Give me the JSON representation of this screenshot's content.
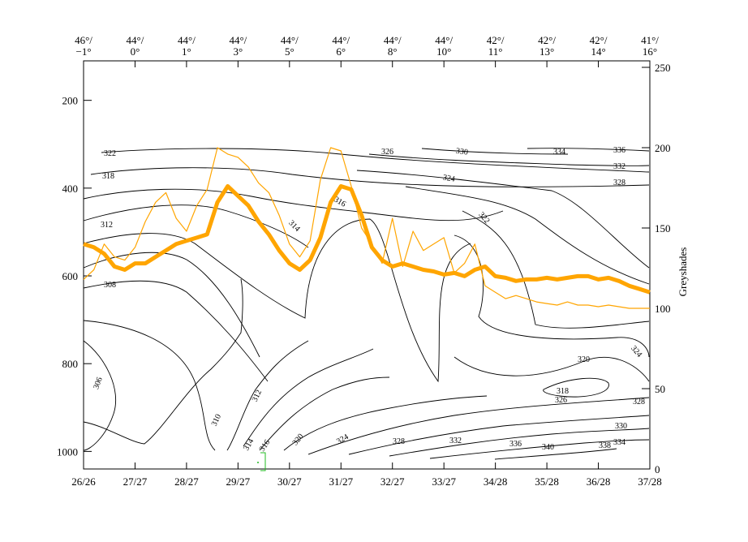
{
  "chart_data": {
    "type": "line",
    "title": "",
    "left_axis": {
      "ticks": [
        "200",
        "400",
        "600",
        "800",
        "1000"
      ],
      "values": [
        200,
        400,
        600,
        800,
        1000
      ],
      "range": [
        110,
        1040
      ]
    },
    "right_axis": {
      "label": "Greyshades",
      "ticks": [
        "0",
        "50",
        "100",
        "150",
        "200",
        "250"
      ],
      "values": [
        0,
        50,
        100,
        150,
        200,
        250
      ],
      "range": [
        0,
        250
      ]
    },
    "bottom_axis": {
      "ticks": [
        "26/26",
        "27/27",
        "28/27",
        "29/27",
        "30/27",
        "31/27",
        "32/27",
        "33/27",
        "34/28",
        "35/28",
        "36/28",
        "37/28"
      ]
    },
    "top_axis": {
      "lat": [
        "46°/",
        "44°/",
        "44°/",
        "44°/",
        "44°/",
        "44°/",
        "44°/",
        "44°/",
        "42°/",
        "42°/",
        "42°/",
        "41°/"
      ],
      "lon": [
        "−1°",
        "0°",
        "1°",
        "3°",
        "5°",
        "6°",
        "8°",
        "10°",
        "11°",
        "13°",
        "14°",
        "16°"
      ]
    },
    "contour_labels": [
      "322",
      "318",
      "312",
      "308",
      "306",
      "310",
      "312",
      "314",
      "316",
      "320",
      "324",
      "328",
      "332",
      "336",
      "340",
      "338",
      "334",
      "330",
      "328",
      "326",
      "318",
      "320",
      "324",
      "328",
      "332",
      "336",
      "330",
      "334",
      "324",
      "322",
      "316",
      "314",
      "326"
    ],
    "series": [
      {
        "color": "#ffa500",
        "x": [
          0,
          0.2,
          0.4,
          0.6,
          0.8,
          1.0,
          1.2,
          1.4,
          1.6,
          1.8,
          2.0,
          2.2,
          2.4,
          2.6,
          2.8,
          3.0,
          3.2,
          3.4,
          3.6,
          3.8,
          4.0,
          4.2,
          4.4,
          4.6,
          4.8,
          5.0,
          5.2,
          5.4,
          5.6,
          5.8,
          6.0,
          6.2,
          6.4,
          6.6,
          6.8,
          7.0,
          7.2,
          7.4,
          7.6,
          7.8,
          8.0,
          8.2,
          8.4,
          8.6,
          8.8,
          9.0,
          9.2,
          9.4,
          9.6,
          9.8,
          10.0,
          10.2,
          10.4,
          10.6,
          10.8,
          11.0
        ],
        "values": [
          140,
          138,
          134,
          126,
          124,
          128,
          128,
          132,
          136,
          140,
          142,
          144,
          146,
          166,
          176,
          170,
          164,
          154,
          146,
          136,
          128,
          124,
          130,
          144,
          166,
          176,
          174,
          158,
          138,
          130,
          126,
          128,
          126,
          124,
          123,
          121,
          122,
          120,
          124,
          126,
          120,
          119,
          117,
          118,
          118,
          119,
          118,
          119,
          120,
          120,
          118,
          119,
          117,
          114,
          112,
          110
        ]
      },
      {
        "color": "#ffa500",
        "x": [
          0,
          0.2,
          0.4,
          0.6,
          0.8,
          1.0,
          1.2,
          1.4,
          1.6,
          1.8,
          2.0,
          2.2,
          2.4,
          2.6,
          2.8,
          3.0,
          3.2,
          3.4,
          3.6,
          3.8,
          4.0,
          4.2,
          4.4,
          4.6,
          4.8,
          5.0,
          5.2,
          5.4,
          5.6,
          5.8,
          6.0,
          6.2,
          6.4,
          6.6,
          6.8,
          7.0,
          7.2,
          7.4,
          7.6,
          7.8,
          8.0,
          8.2,
          8.4,
          8.6,
          8.8,
          9.0,
          9.2,
          9.4,
          9.6,
          9.8,
          10.0,
          10.2,
          10.4,
          10.6,
          10.8,
          11.0
        ],
        "values": [
          118,
          124,
          140,
          132,
          130,
          138,
          154,
          166,
          172,
          156,
          148,
          164,
          174,
          200,
          196,
          194,
          188,
          178,
          172,
          158,
          140,
          132,
          142,
          180,
          200,
          198,
          176,
          150,
          140,
          128,
          156,
          126,
          148,
          136,
          140,
          144,
          122,
          128,
          140,
          114,
          110,
          106,
          108,
          106,
          104,
          103,
          102,
          104,
          102,
          102,
          101,
          102,
          101,
          100,
          100,
          100
        ]
      }
    ]
  }
}
